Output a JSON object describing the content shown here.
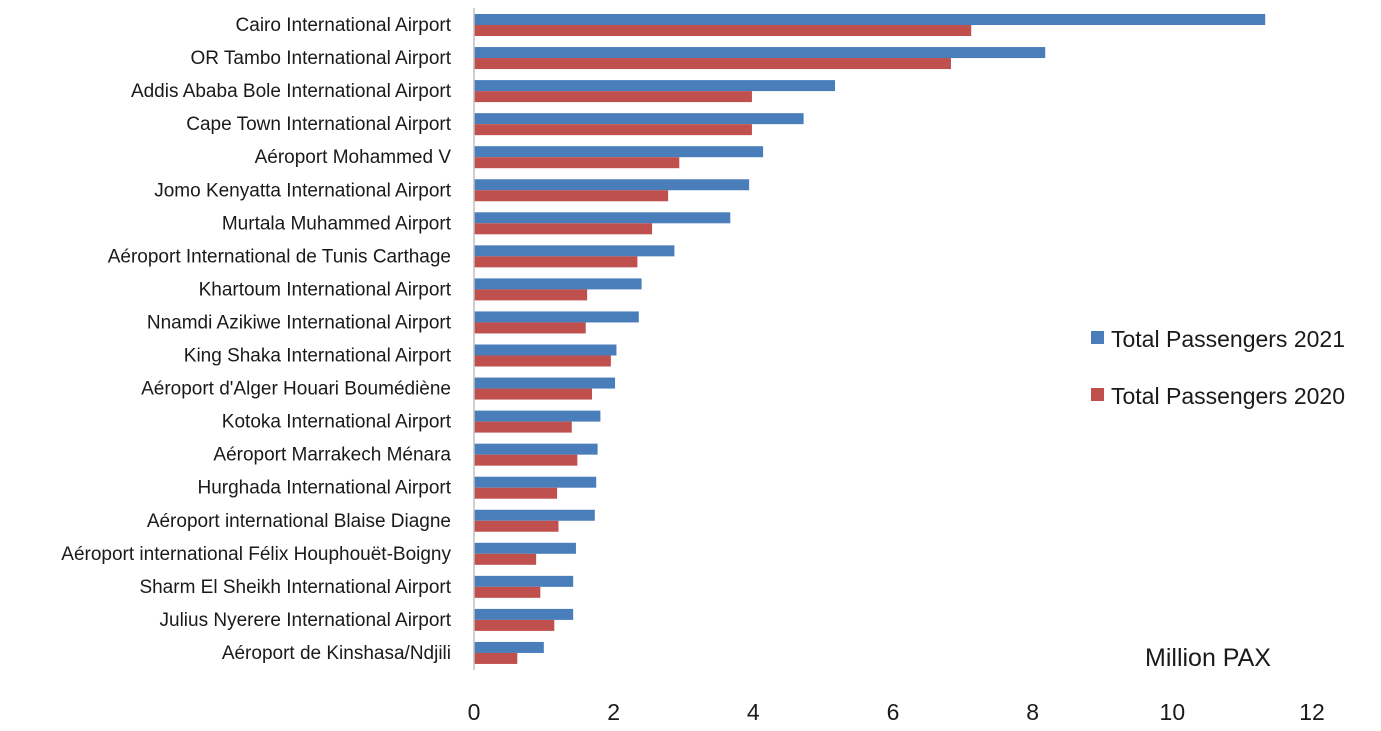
{
  "chart_data": {
    "type": "bar",
    "orientation": "horizontal",
    "categories": [
      "Cairo International Airport",
      "OR Tambo International Airport",
      "Addis Ababa Bole International Airport",
      "Cape Town International Airport",
      "Aéroport Mohammed V",
      "Jomo Kenyatta International Airport",
      "Murtala Muhammed Airport",
      "Aéroport International de Tunis Carthage",
      "Khartoum International Airport",
      "Nnamdi Azikiwe International Airport",
      "King Shaka International Airport",
      "Aéroport d'Alger Houari Boumédiène",
      "Kotoka International Airport",
      "Aéroport Marrakech Ménara",
      "Hurghada International Airport",
      "Aéroport international Blaise Diagne",
      "Aéroport international Félix Houphouët-Boigny",
      "Sharm El Sheikh International Airport",
      "Julius Nyerere International Airport",
      "Aéroport de Kinshasa/Ndjili"
    ],
    "series": [
      {
        "name": "Total Passengers 2021",
        "color": "#4a7ebb",
        "values": [
          11.33,
          8.18,
          5.17,
          4.72,
          4.14,
          3.94,
          3.67,
          2.87,
          2.4,
          2.36,
          2.04,
          2.02,
          1.81,
          1.77,
          1.75,
          1.73,
          1.46,
          1.42,
          1.42,
          1.0
        ]
      },
      {
        "name": "Total Passengers 2020",
        "color": "#c0504d",
        "values": [
          7.12,
          6.83,
          3.98,
          3.98,
          2.94,
          2.78,
          2.55,
          2.34,
          1.62,
          1.6,
          1.96,
          1.69,
          1.4,
          1.48,
          1.19,
          1.21,
          0.89,
          0.95,
          1.15,
          0.62
        ]
      }
    ],
    "xlim": [
      0,
      12
    ],
    "xticks": [
      0,
      2,
      4,
      6,
      8,
      10,
      12
    ],
    "unit_label": "Million PAX",
    "grid": false,
    "legend_position": "right"
  }
}
